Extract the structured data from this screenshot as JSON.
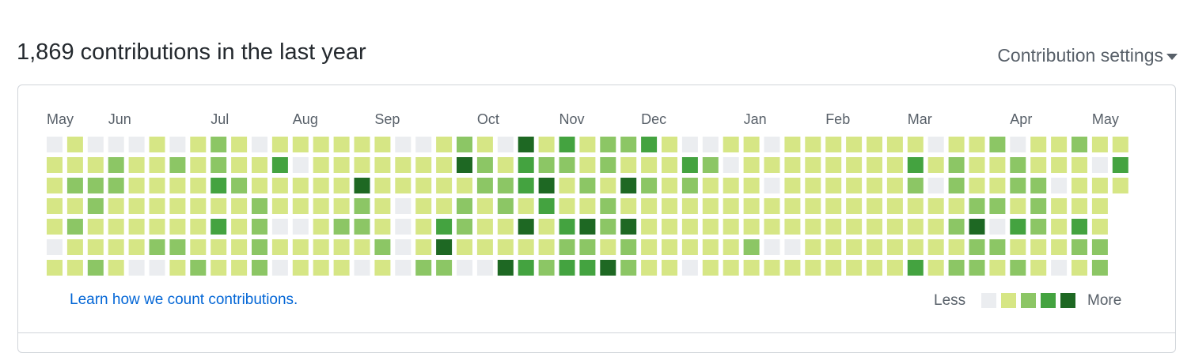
{
  "header": {
    "title": "1,869 contributions in the last year",
    "settings": "Contribution settings"
  },
  "graph": {
    "months": [
      "May",
      "Jun",
      "Jul",
      "Aug",
      "Sep",
      "Oct",
      "Nov",
      "Dec",
      "Jan",
      "Feb",
      "Mar",
      "Apr",
      "May"
    ],
    "level_colors": [
      "#ebedf0",
      "#d6e685",
      "#8cc665",
      "#44a340",
      "#1e6823"
    ],
    "rows": [
      [
        0,
        1,
        0,
        0,
        0,
        1,
        0,
        1,
        2,
        1,
        0,
        1,
        1,
        1,
        1,
        1,
        1,
        0,
        0,
        1,
        2,
        1,
        0,
        4,
        1,
        3,
        1,
        2,
        2,
        3,
        1,
        0,
        0,
        1,
        1,
        0,
        1,
        1,
        1,
        1,
        1,
        1,
        1,
        0,
        1,
        1,
        2,
        0,
        1,
        1,
        2,
        1,
        1
      ],
      [
        1,
        1,
        1,
        2,
        1,
        1,
        2,
        1,
        2,
        1,
        1,
        3,
        0,
        1,
        1,
        1,
        1,
        1,
        1,
        1,
        4,
        2,
        1,
        3,
        2,
        2,
        1,
        2,
        1,
        1,
        1,
        3,
        2,
        0,
        1,
        1,
        1,
        1,
        1,
        1,
        1,
        1,
        3,
        1,
        2,
        1,
        1,
        2,
        1,
        1,
        1,
        0,
        3
      ],
      [
        1,
        2,
        2,
        2,
        1,
        1,
        1,
        1,
        3,
        2,
        1,
        1,
        1,
        1,
        1,
        4,
        1,
        1,
        1,
        1,
        1,
        2,
        2,
        3,
        4,
        1,
        2,
        1,
        4,
        2,
        1,
        2,
        1,
        1,
        1,
        0,
        1,
        1,
        1,
        1,
        1,
        1,
        2,
        0,
        2,
        1,
        1,
        2,
        2,
        0,
        1,
        1,
        1
      ],
      [
        1,
        1,
        2,
        1,
        1,
        1,
        1,
        1,
        1,
        1,
        2,
        1,
        1,
        1,
        1,
        2,
        1,
        0,
        1,
        1,
        2,
        1,
        2,
        1,
        3,
        1,
        1,
        2,
        1,
        1,
        1,
        1,
        1,
        1,
        1,
        1,
        1,
        1,
        1,
        1,
        1,
        1,
        1,
        1,
        1,
        2,
        2,
        1,
        2,
        1,
        1,
        1,
        null
      ],
      [
        1,
        2,
        1,
        1,
        1,
        1,
        1,
        1,
        3,
        1,
        2,
        0,
        0,
        1,
        2,
        2,
        1,
        0,
        1,
        3,
        2,
        1,
        1,
        4,
        1,
        3,
        4,
        2,
        4,
        1,
        1,
        1,
        1,
        1,
        1,
        1,
        1,
        1,
        1,
        1,
        1,
        1,
        1,
        1,
        2,
        4,
        0,
        3,
        2,
        1,
        3,
        1,
        null
      ],
      [
        0,
        1,
        1,
        1,
        1,
        2,
        2,
        1,
        1,
        1,
        2,
        1,
        1,
        1,
        1,
        1,
        2,
        0,
        1,
        4,
        1,
        1,
        1,
        1,
        1,
        2,
        2,
        1,
        2,
        1,
        1,
        1,
        1,
        1,
        2,
        0,
        0,
        1,
        1,
        1,
        1,
        1,
        1,
        1,
        1,
        2,
        2,
        1,
        1,
        1,
        2,
        2,
        null
      ],
      [
        1,
        1,
        2,
        1,
        0,
        0,
        1,
        2,
        1,
        1,
        2,
        0,
        1,
        1,
        1,
        0,
        1,
        0,
        2,
        2,
        0,
        0,
        4,
        3,
        2,
        3,
        3,
        4,
        2,
        1,
        1,
        0,
        1,
        1,
        1,
        1,
        1,
        1,
        1,
        1,
        1,
        1,
        3,
        1,
        2,
        2,
        1,
        2,
        1,
        0,
        1,
        2,
        null
      ]
    ]
  },
  "footer": {
    "link": "Learn how we count contributions.",
    "less": "Less",
    "more": "More"
  }
}
